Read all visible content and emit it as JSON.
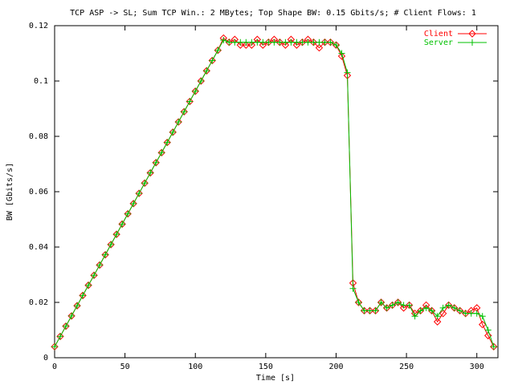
{
  "chart_data": {
    "type": "line",
    "title": "TCP ASP -> SL; Sum TCP Win.: 2 MBytes; Top Shape BW: 0.15 Gbits/s; # Client Flows: 1",
    "x_label": "Time [s]",
    "y_label": "BW [Gbits/s]",
    "x": [
      0,
      4,
      8,
      12,
      16,
      20,
      24,
      28,
      32,
      36,
      40,
      44,
      48,
      52,
      56,
      60,
      64,
      68,
      72,
      76,
      80,
      84,
      88,
      92,
      96,
      100,
      104,
      108,
      112,
      116,
      120,
      124,
      128,
      132,
      136,
      140,
      144,
      148,
      152,
      156,
      160,
      164,
      168,
      172,
      176,
      180,
      184,
      188,
      192,
      196,
      200,
      204,
      208,
      212,
      216,
      220,
      224,
      228,
      232,
      236,
      240,
      244,
      248,
      252,
      256,
      260,
      264,
      268,
      272,
      276,
      280,
      284,
      288,
      292,
      296,
      300,
      304,
      308,
      312
    ],
    "series": [
      {
        "name": "Client",
        "color": "#ff0000",
        "marker": "diamond",
        "values": [
          0.004,
          0.0077,
          0.0114,
          0.0151,
          0.0188,
          0.0225,
          0.0262,
          0.0298,
          0.0335,
          0.0372,
          0.0409,
          0.0446,
          0.0483,
          0.052,
          0.0557,
          0.0594,
          0.0631,
          0.0668,
          0.0705,
          0.0741,
          0.0778,
          0.0815,
          0.0852,
          0.0889,
          0.0926,
          0.0963,
          0.1,
          0.1037,
          0.1074,
          0.1111,
          0.1155,
          0.114,
          0.115,
          0.113,
          0.113,
          0.113,
          0.115,
          0.113,
          0.114,
          0.115,
          0.114,
          0.113,
          0.115,
          0.113,
          0.114,
          0.115,
          0.114,
          0.112,
          0.114,
          0.114,
          0.113,
          0.109,
          0.102,
          0.027,
          0.02,
          0.017,
          0.017,
          0.017,
          0.02,
          0.018,
          0.019,
          0.02,
          0.018,
          0.019,
          0.016,
          0.017,
          0.019,
          0.017,
          0.013,
          0.016,
          0.019,
          0.018,
          0.017,
          0.016,
          0.017,
          0.018,
          0.012,
          0.008,
          0.004
        ]
      },
      {
        "name": "Server",
        "color": "#00c000",
        "marker": "plus",
        "values": [
          0.004,
          0.0077,
          0.0114,
          0.0151,
          0.0188,
          0.0225,
          0.0262,
          0.0298,
          0.0335,
          0.0372,
          0.0409,
          0.0446,
          0.0483,
          0.052,
          0.0557,
          0.0594,
          0.0631,
          0.0668,
          0.0705,
          0.0741,
          0.0778,
          0.0815,
          0.0852,
          0.0889,
          0.0926,
          0.0963,
          0.1,
          0.1037,
          0.1074,
          0.1111,
          0.1148,
          0.114,
          0.114,
          0.114,
          0.114,
          0.114,
          0.114,
          0.114,
          0.114,
          0.114,
          0.114,
          0.114,
          0.114,
          0.114,
          0.114,
          0.114,
          0.114,
          0.114,
          0.114,
          0.114,
          0.113,
          0.11,
          0.103,
          0.025,
          0.02,
          0.017,
          0.017,
          0.017,
          0.02,
          0.018,
          0.019,
          0.02,
          0.019,
          0.019,
          0.015,
          0.017,
          0.018,
          0.017,
          0.015,
          0.018,
          0.019,
          0.018,
          0.017,
          0.016,
          0.016,
          0.016,
          0.015,
          0.01,
          0.004
        ]
      }
    ],
    "xlim": [
      0,
      315
    ],
    "ylim": [
      0,
      0.12
    ],
    "xticks": [
      0,
      50,
      100,
      150,
      200,
      250,
      300
    ],
    "yticks": [
      0,
      0.02,
      0.04,
      0.06,
      0.08,
      0.1,
      0.12
    ],
    "grid": false,
    "legend": "top-right"
  }
}
